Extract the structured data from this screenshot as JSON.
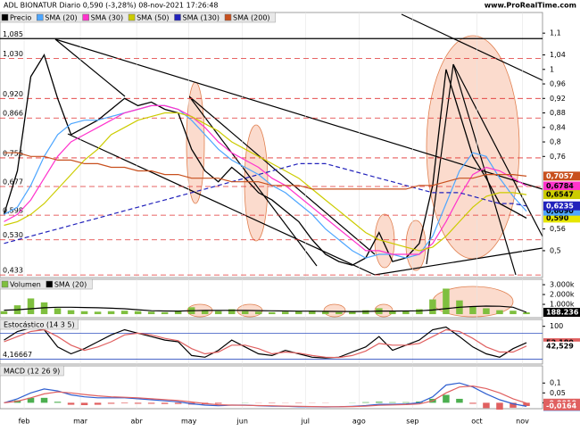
{
  "header": {
    "title": "ADL BIONATUR Diario 0,590 (-3,28%) 08-nov-2021 17:26:48",
    "site": "www.ProRealTime.com"
  },
  "chart_data": [
    {
      "type": "line",
      "xlim": [
        -0.3,
        40.2
      ],
      "ylim": [
        0.426,
        1.157
      ],
      "yticks": [
        {
          "value": 1.1,
          "label": "1,1"
        },
        {
          "value": 1.04,
          "label": "1,04"
        },
        {
          "value": 1,
          "label": "1"
        },
        {
          "value": 0.96,
          "label": "0,96"
        },
        {
          "value": 0.92,
          "label": "0,92"
        },
        {
          "value": 0.88,
          "label": "0,88"
        },
        {
          "value": 0.84,
          "label": "0,84"
        },
        {
          "value": 0.8,
          "label": "0,8"
        },
        {
          "value": 0.76,
          "label": "0,76"
        },
        {
          "value": 0.56,
          "label": "0,56"
        },
        {
          "value": 0.5,
          "label": "0,5"
        }
      ],
      "levels": [
        {
          "value": 1.085,
          "label": "1,085"
        },
        {
          "value": 1.03,
          "label": "1,030"
        },
        {
          "value": 0.92,
          "label": "0,920"
        },
        {
          "value": 0.866,
          "label": "0,866"
        },
        {
          "value": 0.756,
          "label": "0,756"
        },
        {
          "value": 0.677,
          "label": "0,677"
        },
        {
          "value": 0.598,
          "label": "0,598"
        },
        {
          "value": 0.53,
          "label": "0,530"
        },
        {
          "value": 0.433,
          "label": "0,433"
        }
      ],
      "series": [
        {
          "name": "Precio",
          "color": "#000000",
          "values": [
            0.6,
            0.72,
            0.98,
            1.04,
            0.92,
            0.82,
            0.84,
            0.86,
            0.89,
            0.92,
            0.9,
            0.91,
            0.89,
            0.88,
            0.78,
            0.72,
            0.69,
            0.73,
            0.7,
            0.66,
            0.64,
            0.61,
            0.58,
            0.53,
            0.49,
            0.47,
            0.46,
            0.48,
            0.55,
            0.47,
            0.48,
            0.52,
            0.68,
            1.0,
            0.88,
            0.76,
            0.7,
            0.63,
            0.61,
            0.59
          ],
          "last": {
            "value": 0.59,
            "label": "0,590"
          },
          "label_color": "#e6e600"
        },
        {
          "name": "SMA (20)",
          "color": "#4da6ff",
          "values": [
            0.6,
            0.62,
            0.68,
            0.76,
            0.82,
            0.85,
            0.86,
            0.86,
            0.87,
            0.88,
            0.89,
            0.9,
            0.9,
            0.89,
            0.86,
            0.82,
            0.78,
            0.75,
            0.73,
            0.71,
            0.68,
            0.66,
            0.63,
            0.6,
            0.56,
            0.53,
            0.5,
            0.48,
            0.49,
            0.49,
            0.48,
            0.49,
            0.54,
            0.63,
            0.72,
            0.77,
            0.76,
            0.7,
            0.65,
            0.609
          ],
          "last": {
            "value": 0.609,
            "label": "0,6090"
          }
        },
        {
          "name": "SMA (30)",
          "color": "#ff33cc",
          "values": [
            0.58,
            0.6,
            0.64,
            0.7,
            0.76,
            0.8,
            0.82,
            0.84,
            0.86,
            0.88,
            0.89,
            0.9,
            0.9,
            0.89,
            0.87,
            0.84,
            0.8,
            0.77,
            0.75,
            0.73,
            0.7,
            0.68,
            0.65,
            0.62,
            0.59,
            0.56,
            0.53,
            0.5,
            0.5,
            0.49,
            0.49,
            0.49,
            0.52,
            0.58,
            0.65,
            0.71,
            0.73,
            0.72,
            0.7,
            0.6784
          ],
          "last": {
            "value": 0.6784,
            "label": "0,6784"
          }
        },
        {
          "name": "SMA (50)",
          "color": "#cccc00",
          "values": [
            0.57,
            0.58,
            0.6,
            0.63,
            0.67,
            0.71,
            0.75,
            0.78,
            0.82,
            0.84,
            0.86,
            0.87,
            0.88,
            0.88,
            0.87,
            0.85,
            0.83,
            0.8,
            0.78,
            0.76,
            0.74,
            0.72,
            0.7,
            0.67,
            0.64,
            0.61,
            0.58,
            0.55,
            0.53,
            0.52,
            0.51,
            0.5,
            0.51,
            0.54,
            0.58,
            0.62,
            0.65,
            0.66,
            0.66,
            0.6547
          ],
          "last": {
            "value": 0.6547,
            "label": "0,6547"
          }
        },
        {
          "name": "SMA (130)",
          "color": "#2222bb",
          "dashed": true,
          "values": [
            0.52,
            0.53,
            0.54,
            0.55,
            0.56,
            0.57,
            0.58,
            0.59,
            0.6,
            0.61,
            0.62,
            0.63,
            0.64,
            0.65,
            0.66,
            0.67,
            0.68,
            0.69,
            0.7,
            0.71,
            0.72,
            0.73,
            0.74,
            0.74,
            0.74,
            0.73,
            0.72,
            0.71,
            0.7,
            0.69,
            0.68,
            0.67,
            0.66,
            0.66,
            0.66,
            0.65,
            0.64,
            0.63,
            0.63,
            0.6235
          ],
          "last": {
            "value": 0.6235,
            "label": "0,6235"
          }
        },
        {
          "name": "SMA (200)",
          "color": "#c8501e",
          "values": [
            0.77,
            0.77,
            0.76,
            0.76,
            0.75,
            0.75,
            0.74,
            0.74,
            0.73,
            0.73,
            0.72,
            0.72,
            0.71,
            0.71,
            0.7,
            0.7,
            0.7,
            0.69,
            0.69,
            0.69,
            0.68,
            0.68,
            0.68,
            0.67,
            0.67,
            0.67,
            0.67,
            0.67,
            0.67,
            0.67,
            0.67,
            0.68,
            0.68,
            0.69,
            0.7,
            0.7,
            0.71,
            0.71,
            0.71,
            0.7057
          ],
          "last": {
            "value": 0.7057,
            "label": "0,7057"
          }
        }
      ]
    },
    {
      "type": "bar",
      "xlim": [
        -0.3,
        40.2
      ],
      "ylim": [
        -360000,
        3550000
      ],
      "yticks": [
        {
          "value": 3000000,
          "label": "3.000k"
        },
        {
          "value": 2000000,
          "label": "2.000k"
        },
        {
          "value": 1000000,
          "label": "1.000k"
        }
      ],
      "series": [
        {
          "name": "Volumen",
          "color": "#7fbf3f",
          "values": [
            300000,
            900000,
            1600000,
            1200000,
            600000,
            400000,
            300000,
            250000,
            300000,
            350000,
            300000,
            250000,
            200000,
            350000,
            700000,
            400000,
            300000,
            500000,
            300000,
            250000,
            200000,
            250000,
            300000,
            350000,
            300000,
            200000,
            250000,
            400000,
            600000,
            300000,
            350000,
            500000,
            1500000,
            2600000,
            1400000,
            800000,
            600000,
            400000,
            350000,
            184613
          ],
          "last": {
            "value": 184613,
            "label": "184.613"
          },
          "label_color": "#e06060"
        },
        {
          "name": "SMA (20)",
          "color": "#000000",
          "values": [
            400000,
            450000,
            550000,
            650000,
            700000,
            700000,
            680000,
            650000,
            600000,
            550000,
            450000,
            350000,
            320000,
            310000,
            350000,
            380000,
            380000,
            390000,
            380000,
            360000,
            340000,
            320000,
            300000,
            300000,
            290000,
            280000,
            270000,
            280000,
            310000,
            310000,
            320000,
            340000,
            420000,
            560000,
            700000,
            780000,
            820000,
            800000,
            700000,
            188236
          ],
          "last": {
            "value": 188236,
            "label": "188.236"
          }
        }
      ]
    },
    {
      "type": "line",
      "title": "Estocástico (14 3 5)",
      "xlim": [
        -0.3,
        40.2
      ],
      "ylim": [
        -10,
        120
      ],
      "yticks": [
        100
      ],
      "levels": [
        {
          "value": 80,
          "label": "80"
        },
        {
          "value": 4.16667,
          "label": "4,16667"
        }
      ],
      "series": [
        {
          "color": "#000000",
          "values": [
            60,
            85,
            95,
            90,
            40,
            20,
            35,
            55,
            75,
            90,
            80,
            70,
            60,
            55,
            15,
            10,
            30,
            60,
            40,
            20,
            15,
            30,
            20,
            10,
            8,
            10,
            25,
            40,
            70,
            30,
            45,
            60,
            90,
            98,
            70,
            40,
            20,
            10,
            35,
            52.18
          ],
          "last": {
            "value": 52.18,
            "label": "52,180"
          },
          "label_color": "#e06060"
        },
        {
          "color": "#e06060",
          "values": [
            55,
            70,
            85,
            90,
            70,
            45,
            30,
            40,
            55,
            75,
            80,
            75,
            65,
            58,
            35,
            20,
            25,
            45,
            45,
            35,
            20,
            25,
            22,
            15,
            10,
            9,
            15,
            28,
            50,
            45,
            45,
            50,
            70,
            90,
            85,
            65,
            40,
            25,
            25,
            42.529
          ],
          "last": {
            "value": 42.529,
            "label": "42,529"
          },
          "label_color": "#ffffff"
        }
      ]
    },
    {
      "type": "line",
      "title": "MACD (12 26 9)",
      "xlim": [
        -0.3,
        40.2
      ],
      "ylim": [
        -0.03,
        0.187
      ],
      "yticks": [
        {
          "value": 0.1,
          "label": "0,1"
        },
        {
          "value": 0.05,
          "label": "0,05"
        },
        0
      ],
      "xticks": [
        {
          "value": 1.5,
          "label": "feb"
        },
        {
          "value": 5.7,
          "label": "mar"
        },
        {
          "value": 9.9,
          "label": "abr"
        },
        {
          "value": 13.8,
          "label": "may"
        },
        {
          "value": 17.8,
          "label": "jun"
        },
        {
          "value": 22.5,
          "label": "jul"
        },
        {
          "value": 26.5,
          "label": "ago"
        },
        {
          "value": 30.5,
          "label": "sep"
        },
        {
          "value": 35.3,
          "label": "oct"
        },
        {
          "value": 38.7,
          "label": "nov"
        }
      ],
      "histogram": {
        "values": [
          0,
          0.012,
          0.025,
          0.025,
          0.005,
          -0.01,
          -0.012,
          -0.01,
          -0.005,
          -0.003,
          -0.005,
          -0.005,
          -0.006,
          -0.006,
          -0.009,
          -0.008,
          -0.005,
          0,
          0.001,
          -0.001,
          -0.002,
          -0.001,
          -0.002,
          -0.001,
          -0.001,
          0,
          0.001,
          0.003,
          0.005,
          0.003,
          0.003,
          0.006,
          0.02,
          0.04,
          0.02,
          -0.005,
          -0.027,
          -0.035,
          -0.025,
          -0.0164
        ],
        "last": {
          "value": -0.0164,
          "label": "-0,0164"
        }
      },
      "series": [
        {
          "color": "#2f5fd0",
          "values": [
            0.0,
            0.02,
            0.05,
            0.07,
            0.06,
            0.04,
            0.03,
            0.025,
            0.025,
            0.025,
            0.02,
            0.015,
            0.01,
            0.005,
            -0.005,
            -0.012,
            -0.015,
            -0.012,
            -0.012,
            -0.015,
            -0.017,
            -0.018,
            -0.02,
            -0.02,
            -0.021,
            -0.02,
            -0.018,
            -0.014,
            -0.008,
            -0.008,
            -0.006,
            0.0,
            0.03,
            0.09,
            0.1,
            0.08,
            0.045,
            0.015,
            -0.005,
            -0.0182
          ],
          "last": {
            "value": -0.0182,
            "label": "-0,0182"
          }
        },
        {
          "color": "#e06060",
          "values": [
            0.0,
            0.008,
            0.025,
            0.045,
            0.055,
            0.05,
            0.042,
            0.035,
            0.03,
            0.028,
            0.025,
            0.02,
            0.016,
            0.011,
            0.004,
            -0.004,
            -0.01,
            -0.012,
            -0.013,
            -0.014,
            -0.015,
            -0.017,
            -0.018,
            -0.019,
            -0.02,
            -0.02,
            -0.019,
            -0.017,
            -0.013,
            -0.011,
            -0.009,
            -0.006,
            0.01,
            0.05,
            0.08,
            0.085,
            0.072,
            0.05,
            0.02,
            -0.0019
          ],
          "last": {
            "value": -0.0019,
            "label": "-0,0019"
          }
        }
      ]
    }
  ]
}
